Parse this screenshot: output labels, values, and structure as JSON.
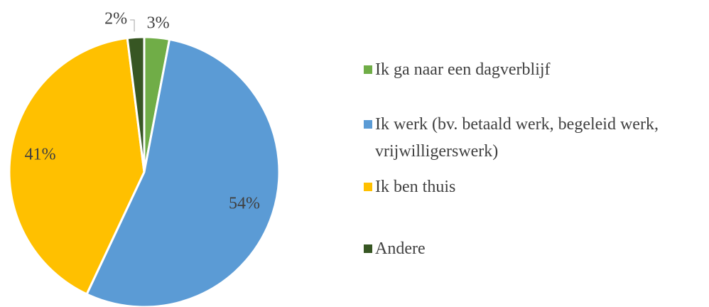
{
  "chart_data": {
    "type": "pie",
    "categories": [
      "Ik ga naar een dagverblijf",
      "Ik werk (bv. betaald werk, begeleid werk, vrijwilligerswerk)",
      "Ik ben thuis",
      "Andere"
    ],
    "values": [
      3,
      54,
      41,
      2
    ],
    "value_labels": [
      "3%",
      "54%",
      "41%",
      "2%"
    ],
    "colors": [
      "#70ad47",
      "#5b9bd5",
      "#ffc000",
      "#375623"
    ],
    "legend": "right"
  }
}
